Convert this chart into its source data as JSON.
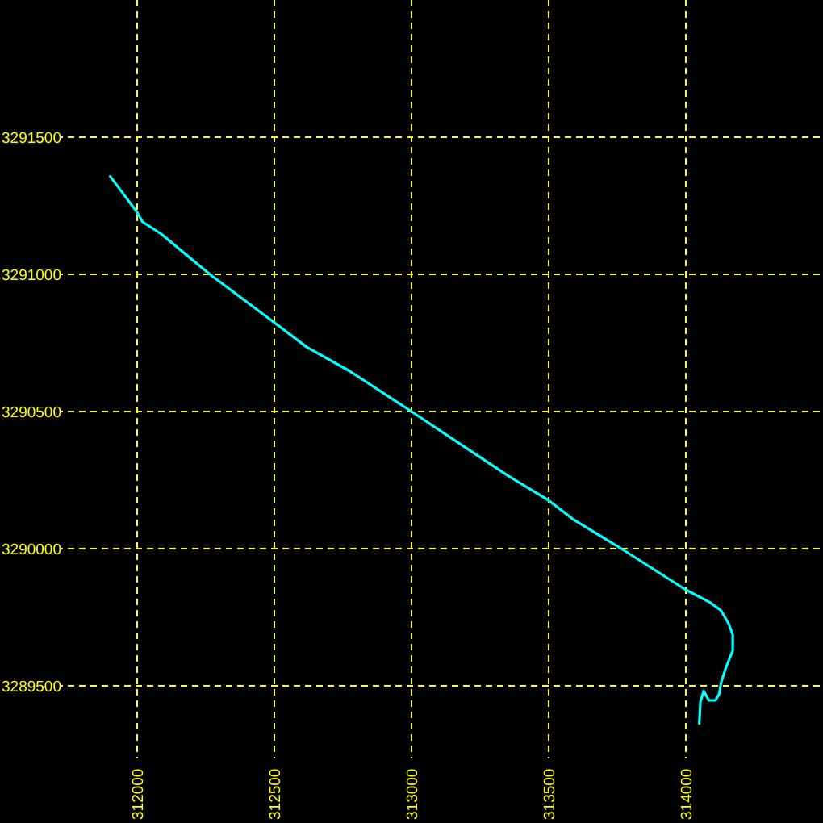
{
  "chart_data": {
    "type": "line",
    "x": [
      311902,
      312000,
      312019,
      312088,
      312265,
      312500,
      312618,
      312775,
      313000,
      313147,
      313353,
      313500,
      313588,
      313765,
      314000,
      314088,
      314128,
      314157,
      314171,
      314171,
      314147,
      314128,
      314122,
      314108,
      314084,
      314065,
      314053,
      314049
    ],
    "values": [
      3291357,
      3291226,
      3291192,
      3291147,
      3291000,
      3290824,
      3290735,
      3290647,
      3290500,
      3290402,
      3290265,
      3290176,
      3290108,
      3290000,
      3289850,
      3289804,
      3289775,
      3289725,
      3289686,
      3289628,
      3289569,
      3289510,
      3289471,
      3289447,
      3289447,
      3289481,
      3289441,
      3289363
    ],
    "color": "#00ffff",
    "xlim": [
      311500,
      314500
    ],
    "ylim": [
      3289000,
      3292000
    ],
    "xticks": [
      312000,
      312500,
      313000,
      313500,
      314000
    ],
    "yticks": [
      3289500,
      3290000,
      3290500,
      3291000,
      3291500
    ],
    "grid": true
  }
}
